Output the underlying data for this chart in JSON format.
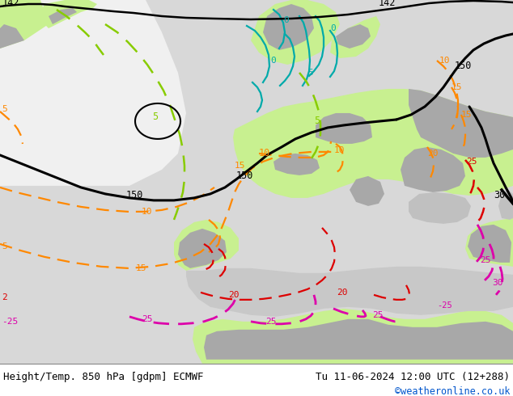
{
  "title_left": "Height/Temp. 850 hPa [gdpm] ECMWF",
  "title_right": "Tu 11-06-2024 12:00 UTC (12+288)",
  "copyright": "©weatheronline.co.uk",
  "color_black": "#000000",
  "color_cyan": "#00aaaa",
  "color_green_line": "#88cc00",
  "color_orange": "#ff8800",
  "color_red": "#dd0000",
  "color_magenta": "#dd00aa",
  "color_copyright": "#0055cc",
  "ocean_color": "#d8d8d8",
  "land_light_green": "#c8f090",
  "land_gray": "#a8a8a8",
  "atlantic_white": "#f0f0f0",
  "footer_bg": "#f0f0f0"
}
